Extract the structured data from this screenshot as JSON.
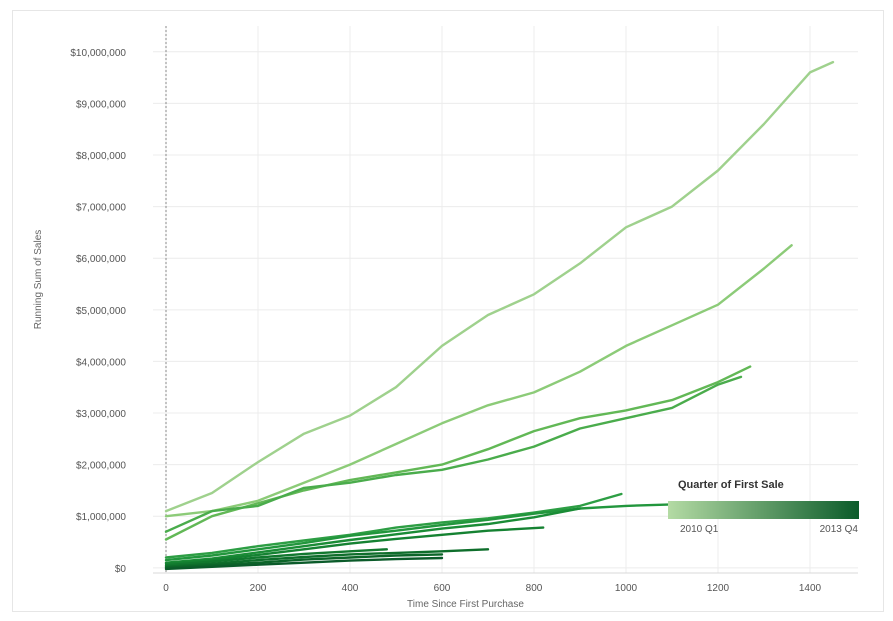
{
  "chart_data": {
    "type": "line",
    "xlabel": "Time Since First Purchase",
    "ylabel": "Running Sum of Sales",
    "xlim": [
      0,
      1500
    ],
    "ylim": [
      -100000,
      10500000
    ],
    "x_ticks": [
      0,
      200,
      400,
      600,
      800,
      1000,
      1200,
      1400
    ],
    "x_tick_labels": [
      "0",
      "200",
      "400",
      "600",
      "800",
      "1000",
      "1200",
      "1400"
    ],
    "y_ticks": [
      0,
      1000000,
      2000000,
      3000000,
      4000000,
      5000000,
      6000000,
      7000000,
      8000000,
      9000000,
      10000000
    ],
    "y_tick_labels": [
      "$0",
      "$1,000,000",
      "$2,000,000",
      "$3,000,000",
      "$4,000,000",
      "$5,000,000",
      "$6,000,000",
      "$7,000,000",
      "$8,000,000",
      "$9,000,000",
      "$10,000,000"
    ],
    "grid": true,
    "legend": {
      "title": "Quarter of First Sale",
      "min_label": "2010 Q1",
      "max_label": "2013 Q4",
      "placement": "bottom-right",
      "color_low": "#b4dba4",
      "color_high": "#0b5b2a"
    },
    "series": [
      {
        "color": "#9fd18d",
        "points": [
          [
            0,
            1100000
          ],
          [
            100,
            1450000
          ],
          [
            200,
            2050000
          ],
          [
            300,
            2600000
          ],
          [
            400,
            2950000
          ],
          [
            500,
            3500000
          ],
          [
            600,
            4300000
          ],
          [
            700,
            4900000
          ],
          [
            800,
            5300000
          ],
          [
            900,
            5900000
          ],
          [
            1000,
            6600000
          ],
          [
            1100,
            7000000
          ],
          [
            1200,
            7700000
          ],
          [
            1300,
            8600000
          ],
          [
            1400,
            9600000
          ],
          [
            1450,
            9800000
          ]
        ]
      },
      {
        "color": "#8ccb78",
        "points": [
          [
            0,
            1000000
          ],
          [
            100,
            1100000
          ],
          [
            200,
            1300000
          ],
          [
            300,
            1650000
          ],
          [
            400,
            2000000
          ],
          [
            500,
            2400000
          ],
          [
            600,
            2800000
          ],
          [
            700,
            3150000
          ],
          [
            800,
            3400000
          ],
          [
            900,
            3800000
          ],
          [
            1000,
            4300000
          ],
          [
            1100,
            4700000
          ],
          [
            1200,
            5100000
          ],
          [
            1300,
            5800000
          ],
          [
            1360,
            6250000
          ]
        ]
      },
      {
        "color": "#62b856",
        "points": [
          [
            0,
            550000
          ],
          [
            100,
            1000000
          ],
          [
            200,
            1250000
          ],
          [
            300,
            1500000
          ],
          [
            400,
            1700000
          ],
          [
            500,
            1850000
          ],
          [
            600,
            2000000
          ],
          [
            700,
            2300000
          ],
          [
            800,
            2650000
          ],
          [
            900,
            2900000
          ],
          [
            1000,
            3050000
          ],
          [
            1100,
            3250000
          ],
          [
            1200,
            3600000
          ],
          [
            1270,
            3900000
          ]
        ]
      },
      {
        "color": "#4aac4c",
        "points": [
          [
            0,
            700000
          ],
          [
            100,
            1100000
          ],
          [
            200,
            1200000
          ],
          [
            300,
            1550000
          ],
          [
            400,
            1650000
          ],
          [
            500,
            1800000
          ],
          [
            600,
            1900000
          ],
          [
            700,
            2100000
          ],
          [
            800,
            2350000
          ],
          [
            900,
            2700000
          ],
          [
            1000,
            2900000
          ],
          [
            1100,
            3100000
          ],
          [
            1200,
            3550000
          ],
          [
            1250,
            3700000
          ]
        ]
      },
      {
        "color": "#2d9e44",
        "points": [
          [
            0,
            200000
          ],
          [
            100,
            290000
          ],
          [
            200,
            420000
          ],
          [
            300,
            530000
          ],
          [
            400,
            640000
          ],
          [
            500,
            780000
          ],
          [
            600,
            880000
          ],
          [
            700,
            960000
          ],
          [
            800,
            1070000
          ],
          [
            900,
            1200000
          ],
          [
            990,
            1430000
          ]
        ]
      },
      {
        "color": "#22963d",
        "points": [
          [
            0,
            150000
          ],
          [
            100,
            240000
          ],
          [
            200,
            360000
          ],
          [
            300,
            480000
          ],
          [
            400,
            620000
          ],
          [
            500,
            720000
          ],
          [
            600,
            830000
          ],
          [
            700,
            930000
          ],
          [
            800,
            1050000
          ],
          [
            900,
            1150000
          ],
          [
            1000,
            1200000
          ],
          [
            1100,
            1230000
          ]
        ]
      },
      {
        "color": "#1a8c36",
        "points": [
          [
            0,
            100000
          ],
          [
            100,
            180000
          ],
          [
            200,
            300000
          ],
          [
            300,
            420000
          ],
          [
            400,
            540000
          ],
          [
            500,
            650000
          ],
          [
            600,
            760000
          ],
          [
            700,
            850000
          ],
          [
            800,
            980000
          ],
          [
            900,
            1150000
          ]
        ]
      },
      {
        "color": "#158232",
        "points": [
          [
            0,
            80000
          ],
          [
            100,
            150000
          ],
          [
            200,
            250000
          ],
          [
            300,
            360000
          ],
          [
            400,
            470000
          ],
          [
            500,
            560000
          ],
          [
            600,
            640000
          ],
          [
            700,
            720000
          ],
          [
            820,
            780000
          ]
        ]
      },
      {
        "color": "#11782e",
        "points": [
          [
            0,
            50000
          ],
          [
            100,
            120000
          ],
          [
            200,
            200000
          ],
          [
            300,
            270000
          ],
          [
            400,
            320000
          ],
          [
            480,
            360000
          ]
        ]
      },
      {
        "color": "#0e6e2b",
        "points": [
          [
            0,
            20000
          ],
          [
            100,
            80000
          ],
          [
            200,
            150000
          ],
          [
            300,
            210000
          ],
          [
            400,
            260000
          ],
          [
            500,
            290000
          ],
          [
            600,
            320000
          ],
          [
            700,
            360000
          ]
        ]
      },
      {
        "color": "#0c6529",
        "points": [
          [
            0,
            0
          ],
          [
            100,
            50000
          ],
          [
            200,
            100000
          ],
          [
            300,
            160000
          ],
          [
            400,
            200000
          ],
          [
            500,
            240000
          ],
          [
            600,
            260000
          ]
        ]
      },
      {
        "color": "#0b5b2a",
        "points": [
          [
            0,
            -20000
          ],
          [
            100,
            20000
          ],
          [
            200,
            60000
          ],
          [
            300,
            100000
          ],
          [
            400,
            140000
          ],
          [
            500,
            170000
          ],
          [
            600,
            190000
          ]
        ]
      }
    ]
  }
}
